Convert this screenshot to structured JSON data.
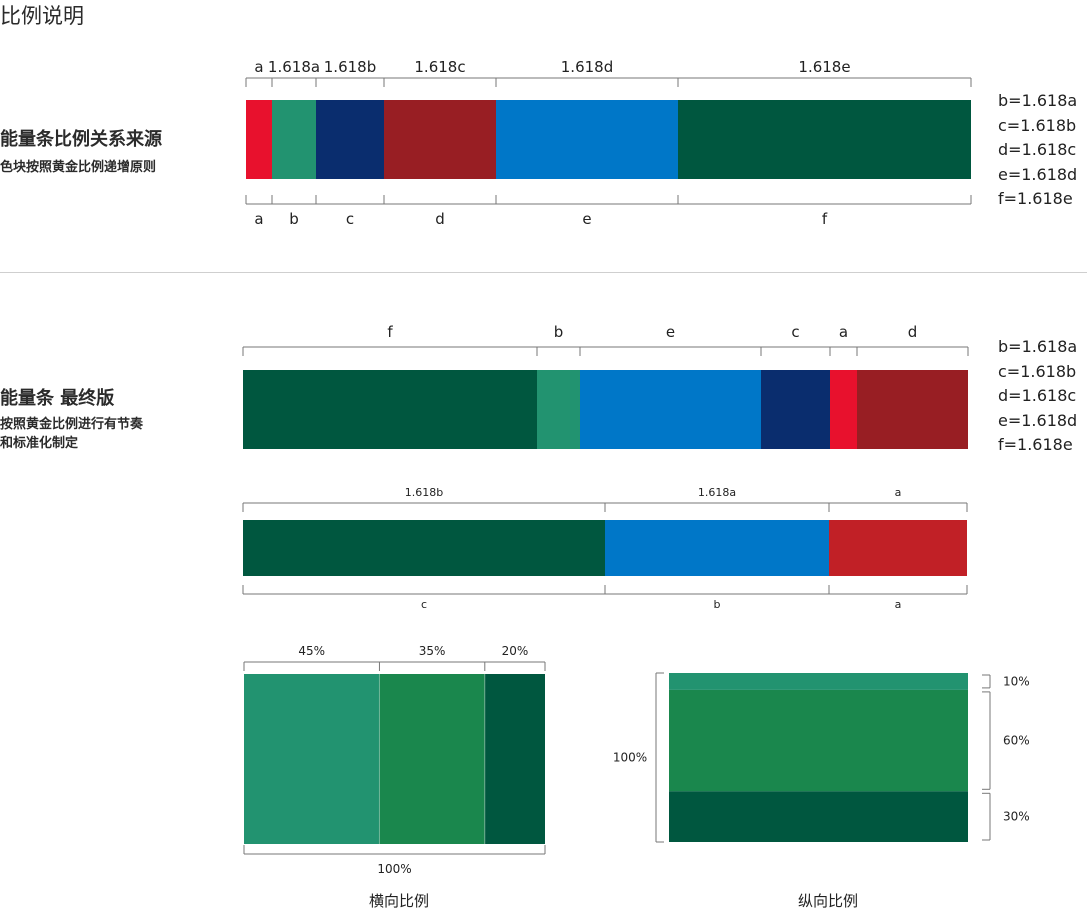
{
  "page": {
    "title": "比例说明"
  },
  "section1": {
    "title": "能量条比例关系来源",
    "subtitle": "色块按照黄金比例递增原则",
    "top_labels": [
      "a",
      "1.618a",
      "1.618b",
      "1.618c",
      "1.618d",
      "1.618e"
    ],
    "bottom_labels": [
      "a",
      "b",
      "c",
      "d",
      "e",
      "f"
    ],
    "colors": [
      "#E8112D",
      "#229370",
      "#0A2D6E",
      "#981E23",
      "#0077C8",
      "#00573F"
    ],
    "formulas": "b=1.618a\nc=1.618b\nd=1.618c\ne=1.618d\nf=1.618e"
  },
  "section2": {
    "title": "能量条 最终版",
    "subtitle": "按照黄金比例进行有节奏\n和标准化制定",
    "segments": [
      {
        "label": "f",
        "color": "#00573F"
      },
      {
        "label": "b",
        "color": "#229370"
      },
      {
        "label": "e",
        "color": "#0077C8"
      },
      {
        "label": "c",
        "color": "#0A2D6E"
      },
      {
        "label": "a",
        "color": "#E8112D"
      },
      {
        "label": "d",
        "color": "#981E23"
      }
    ],
    "formulas": "b=1.618a\nc=1.618b\nd=1.618c\ne=1.618d\nf=1.618e"
  },
  "section3": {
    "top_labels": [
      "1.618b",
      "1.618a",
      "a"
    ],
    "bottom_labels": [
      "c",
      "b",
      "a"
    ],
    "colors": [
      "#00573F",
      "#0077C8",
      "#C12026"
    ]
  },
  "horizontal": {
    "caption": "横向比例",
    "segments": [
      {
        "label": "45%",
        "value": 45,
        "color": "#229370"
      },
      {
        "label": "35%",
        "value": 35,
        "color": "#1A874D"
      },
      {
        "label": "20%",
        "value": 20,
        "color": "#00573F"
      }
    ],
    "total_label": "100%"
  },
  "vertical": {
    "caption": "纵向比例",
    "segments": [
      {
        "label": "10%",
        "value": 10,
        "color": "#229370"
      },
      {
        "label": "60%",
        "value": 60,
        "color": "#1A874D"
      },
      {
        "label": "30%",
        "value": 30,
        "color": "#00573F"
      }
    ],
    "total_label": "100%"
  }
}
